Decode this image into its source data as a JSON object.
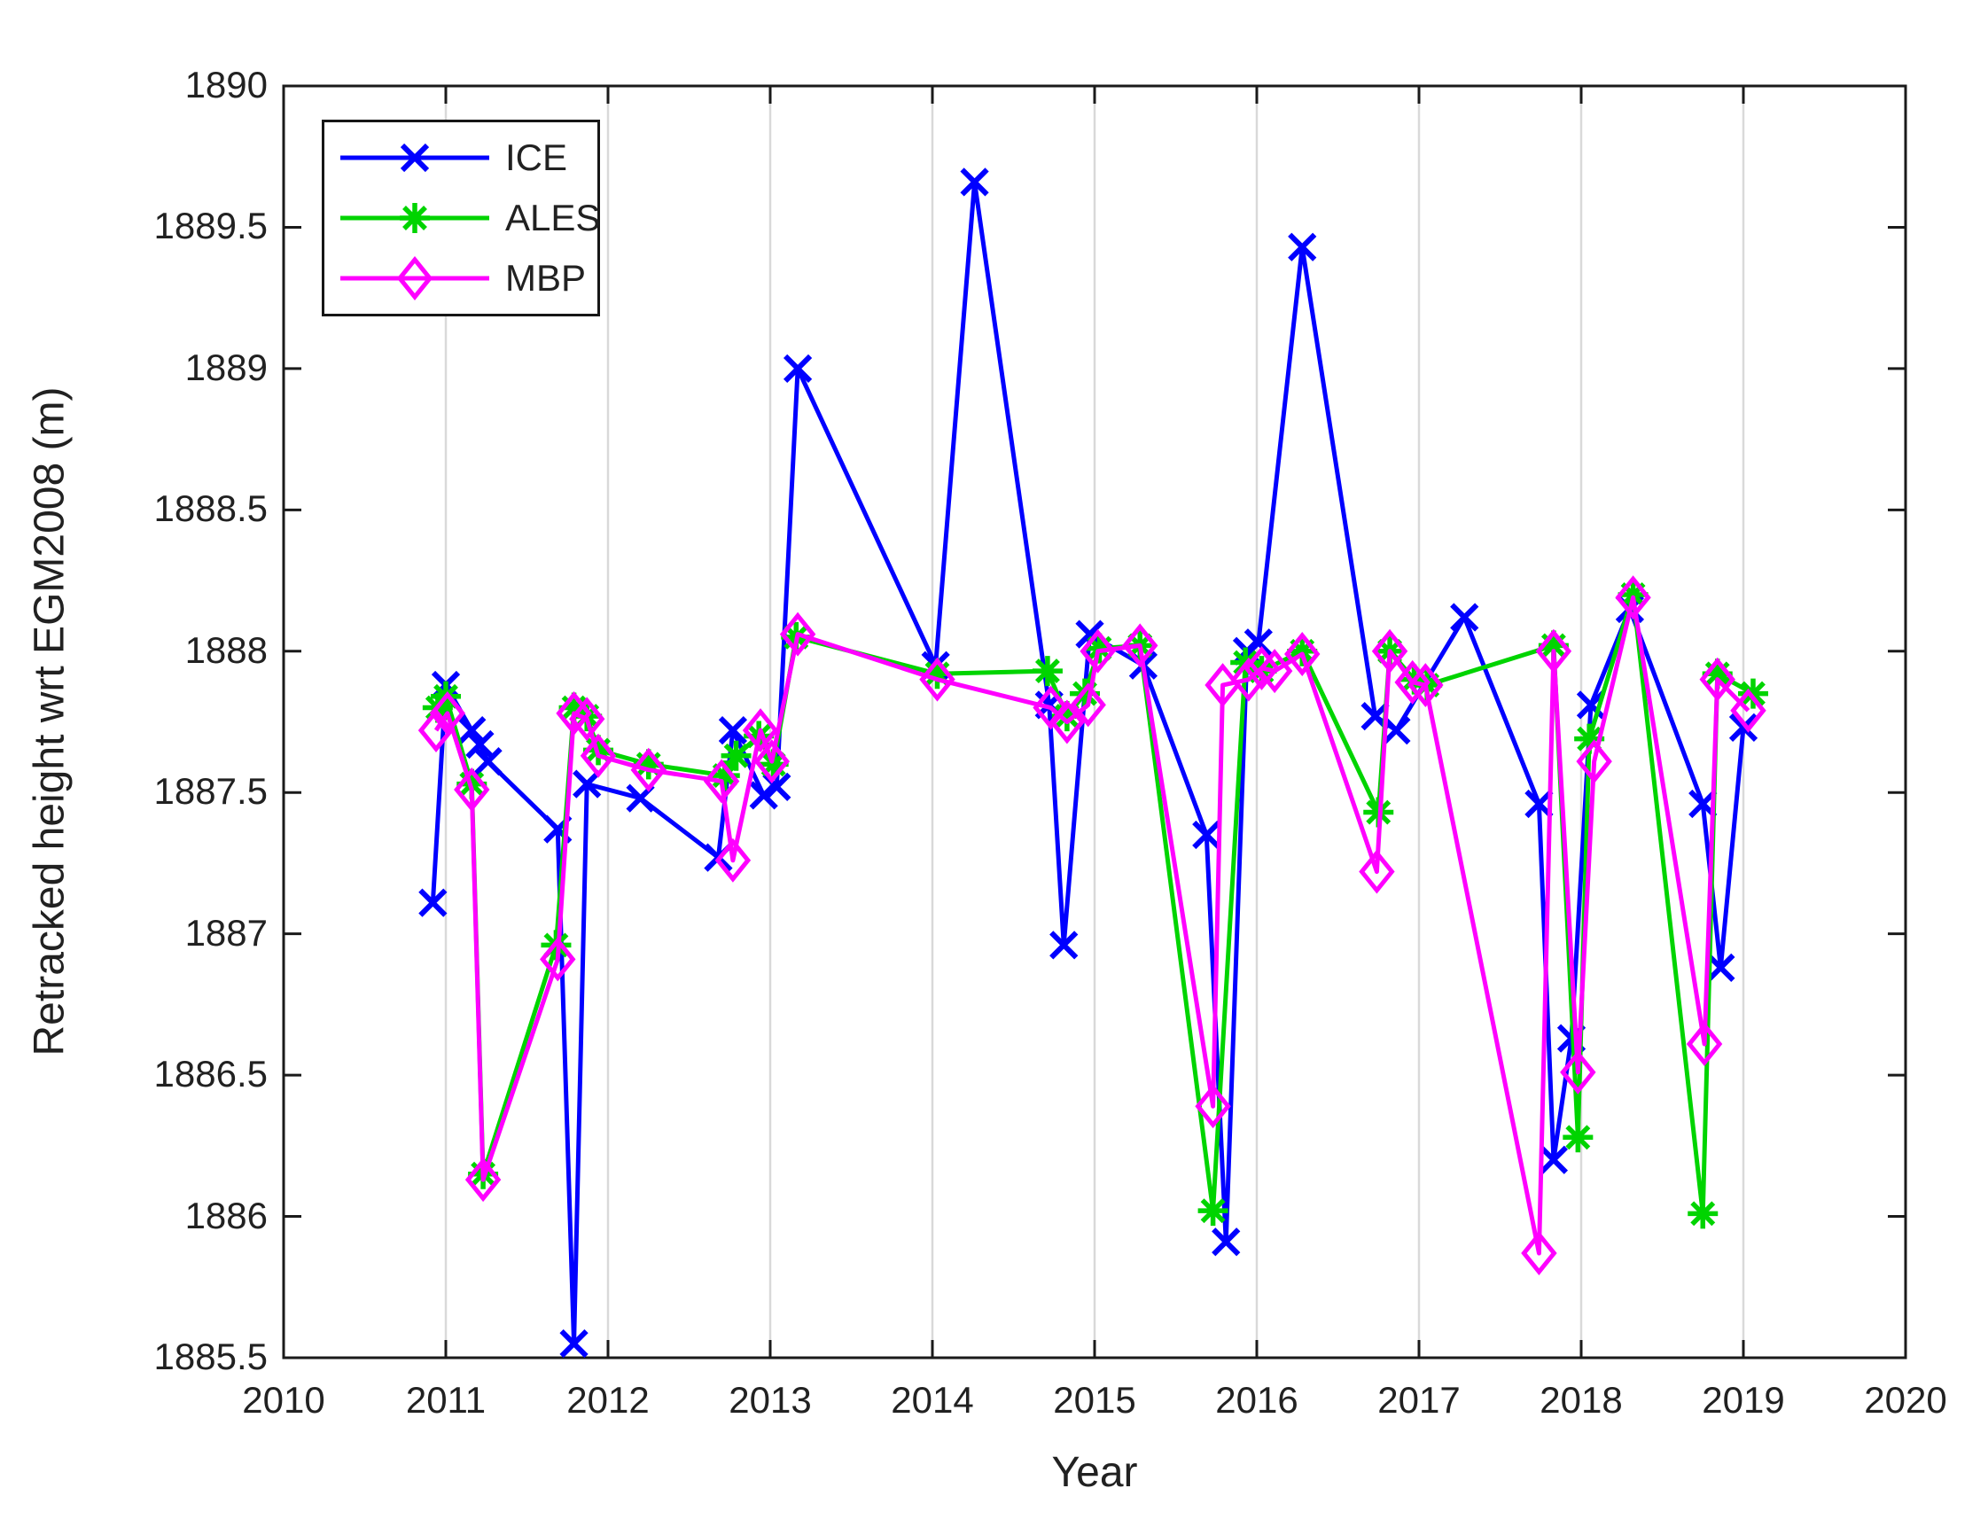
{
  "chart_data": {
    "type": "line",
    "title": "",
    "xlabel": "Year",
    "ylabel": "Retracked height wrt EGM2008 (m)",
    "xlim": [
      2010,
      2020
    ],
    "ylim": [
      1885.5,
      1890
    ],
    "xticks": [
      2010,
      2011,
      2012,
      2013,
      2014,
      2015,
      2016,
      2017,
      2018,
      2019,
      2020
    ],
    "xtick_labels": [
      "2010",
      "2011",
      "2012",
      "2013",
      "2014",
      "2015",
      "2016",
      "2017",
      "2018",
      "2019",
      "2020"
    ],
    "yticks": [
      1885.5,
      1886,
      1886.5,
      1887,
      1887.5,
      1888,
      1888.5,
      1889,
      1889.5,
      1890
    ],
    "ytick_labels": [
      "1885.5",
      "1886",
      "1886.5",
      "1887",
      "1887.5",
      "1888",
      "1888.5",
      "1889",
      "1889.5",
      "1890"
    ],
    "grid": "vertical-only",
    "grid_color": "#d9d9d9",
    "axis_color": "#1a1a1a",
    "legend_position": "top-left",
    "series": [
      {
        "name": "ICE",
        "color": "#0000ff",
        "marker": "x",
        "points": [
          [
            2010.92,
            1887.11
          ],
          [
            2011.0,
            1887.88
          ],
          [
            2011.16,
            1887.72
          ],
          [
            2011.21,
            1887.67
          ],
          [
            2011.26,
            1887.61
          ],
          [
            2011.69,
            1887.37
          ],
          [
            2011.79,
            1885.55
          ],
          [
            2011.87,
            1887.53
          ],
          [
            2012.2,
            1887.48
          ],
          [
            2012.68,
            1887.27
          ],
          [
            2012.77,
            1887.72
          ],
          [
            2012.96,
            1887.49
          ],
          [
            2013.04,
            1887.52
          ],
          [
            2013.17,
            1889.0
          ],
          [
            2014.02,
            1887.95
          ],
          [
            2014.26,
            1889.66
          ],
          [
            2014.72,
            1887.81
          ],
          [
            2014.81,
            1886.96
          ],
          [
            2014.97,
            1888.06
          ],
          [
            2015.3,
            1887.95
          ],
          [
            2015.69,
            1887.35
          ],
          [
            2015.81,
            1885.91
          ],
          [
            2015.94,
            1888.0
          ],
          [
            2016.01,
            1888.03
          ],
          [
            2016.28,
            1889.43
          ],
          [
            2016.73,
            1887.77
          ],
          [
            2016.86,
            1887.72
          ],
          [
            2017.28,
            1888.12
          ],
          [
            2017.74,
            1887.46
          ],
          [
            2017.83,
            1886.2
          ],
          [
            2017.94,
            1886.63
          ],
          [
            2018.06,
            1887.81
          ],
          [
            2018.3,
            1888.15
          ],
          [
            2018.75,
            1887.46
          ],
          [
            2018.86,
            1886.88
          ],
          [
            2019.0,
            1887.73
          ]
        ]
      },
      {
        "name": "ALES",
        "color": "#00d400",
        "marker": "asterisk",
        "points": [
          [
            2010.95,
            1887.8
          ],
          [
            2011.0,
            1887.84
          ],
          [
            2011.16,
            1887.53
          ],
          [
            2011.23,
            1886.15
          ],
          [
            2011.68,
            1886.96
          ],
          [
            2011.79,
            1887.8
          ],
          [
            2011.87,
            1887.77
          ],
          [
            2011.94,
            1887.65
          ],
          [
            2012.25,
            1887.6
          ],
          [
            2012.72,
            1887.56
          ],
          [
            2012.79,
            1887.63
          ],
          [
            2012.93,
            1887.7
          ],
          [
            2013.02,
            1887.6
          ],
          [
            2013.16,
            1888.05
          ],
          [
            2014.03,
            1887.92
          ],
          [
            2014.71,
            1887.93
          ],
          [
            2014.83,
            1887.77
          ],
          [
            2014.94,
            1887.85
          ],
          [
            2015.03,
            1888.01
          ],
          [
            2015.28,
            1888.02
          ],
          [
            2015.73,
            1886.02
          ],
          [
            2015.93,
            1887.96
          ],
          [
            2016.03,
            1887.93
          ],
          [
            2016.28,
            1888.0
          ],
          [
            2016.75,
            1887.43
          ],
          [
            2016.82,
            1888.0
          ],
          [
            2016.97,
            1887.9
          ],
          [
            2017.05,
            1887.88
          ],
          [
            2017.83,
            1888.02
          ],
          [
            2017.98,
            1886.28
          ],
          [
            2018.05,
            1887.69
          ],
          [
            2018.32,
            1888.2
          ],
          [
            2018.75,
            1886.01
          ],
          [
            2018.84,
            1887.92
          ],
          [
            2019.06,
            1887.85
          ]
        ]
      },
      {
        "name": "MBP",
        "color": "#ff00ff",
        "marker": "diamond",
        "points": [
          [
            2010.94,
            1887.72
          ],
          [
            2011.01,
            1887.78
          ],
          [
            2011.16,
            1887.51
          ],
          [
            2011.23,
            1886.13
          ],
          [
            2011.69,
            1886.91
          ],
          [
            2011.79,
            1887.78
          ],
          [
            2011.87,
            1887.76
          ],
          [
            2011.94,
            1887.63
          ],
          [
            2012.25,
            1887.58
          ],
          [
            2012.7,
            1887.54
          ],
          [
            2012.77,
            1887.26
          ],
          [
            2012.94,
            1887.72
          ],
          [
            2013.01,
            1887.61
          ],
          [
            2013.17,
            1888.06
          ],
          [
            2014.03,
            1887.9
          ],
          [
            2014.73,
            1887.8
          ],
          [
            2014.83,
            1887.75
          ],
          [
            2014.96,
            1887.81
          ],
          [
            2015.02,
            1888.0
          ],
          [
            2015.28,
            1888.02
          ],
          [
            2015.73,
            1886.39
          ],
          [
            2015.79,
            1887.88
          ],
          [
            2015.95,
            1887.9
          ],
          [
            2016.03,
            1887.94
          ],
          [
            2016.11,
            1887.93
          ],
          [
            2016.28,
            1887.99
          ],
          [
            2016.74,
            1887.22
          ],
          [
            2016.82,
            1888.0
          ],
          [
            2016.96,
            1887.89
          ],
          [
            2017.04,
            1887.88
          ],
          [
            2017.74,
            1885.87
          ],
          [
            2017.83,
            1888.0
          ],
          [
            2017.98,
            1886.51
          ],
          [
            2018.08,
            1887.61
          ],
          [
            2018.32,
            1888.19
          ],
          [
            2018.76,
            1886.61
          ],
          [
            2018.84,
            1887.9
          ],
          [
            2019.03,
            1887.79
          ]
        ]
      }
    ]
  }
}
